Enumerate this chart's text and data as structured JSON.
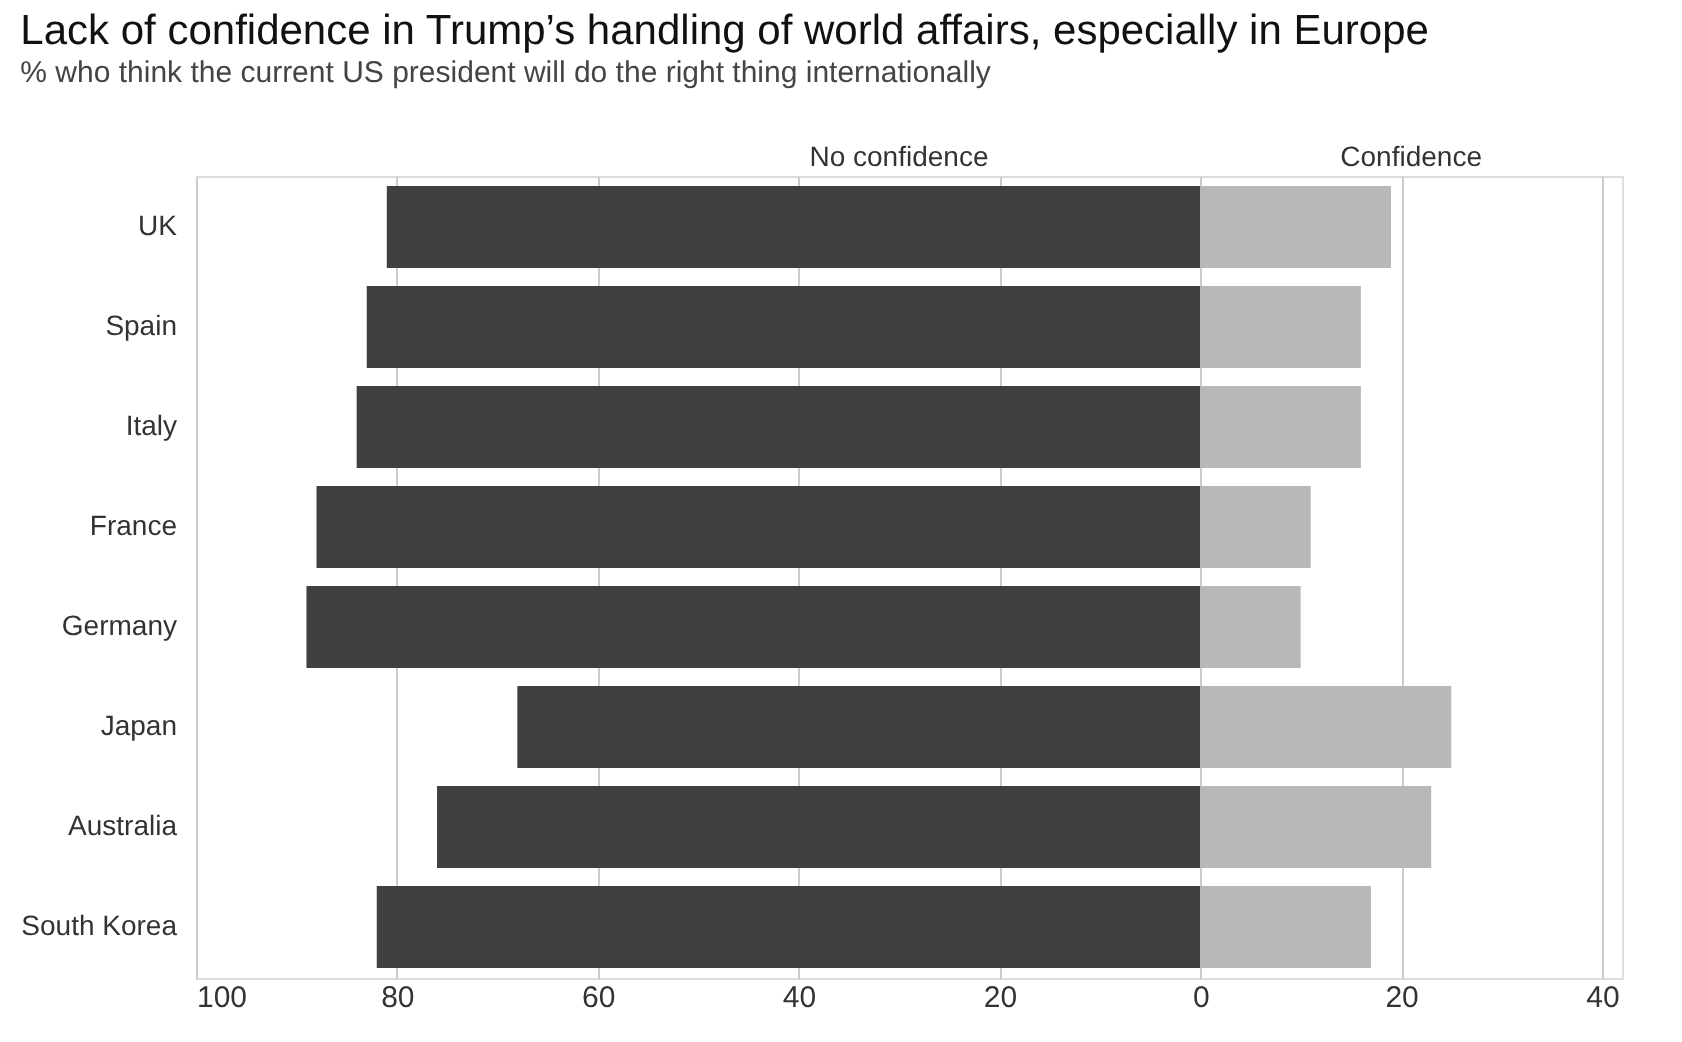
{
  "chart_data": {
    "type": "bar",
    "orientation": "horizontal",
    "title": "Lack of confidence in Trump’s handling of world affairs, especially in Europe",
    "subtitle": "% who think the current US president will do the right thing internationally",
    "categories": [
      "UK",
      "Spain",
      "Italy",
      "France",
      "Germany",
      "Japan",
      "Australia",
      "South Korea"
    ],
    "series": [
      {
        "name": "No confidence",
        "color": "#404040",
        "values": [
          -81,
          -83,
          -84,
          -88,
          -89,
          -68,
          -76,
          -82
        ]
      },
      {
        "name": "Confidence",
        "color": "#b8b8b8",
        "values": [
          19,
          16,
          16,
          11,
          10,
          25,
          23,
          17
        ]
      }
    ],
    "xlim": [
      -100,
      42
    ],
    "xticks": [
      {
        "value": -100,
        "label": "100"
      },
      {
        "value": -80,
        "label": "80"
      },
      {
        "value": -60,
        "label": "60"
      },
      {
        "value": -40,
        "label": "40"
      },
      {
        "value": -20,
        "label": "20"
      },
      0,
      20,
      40
    ],
    "grid": "x",
    "stacked": true
  }
}
